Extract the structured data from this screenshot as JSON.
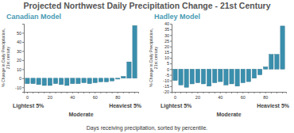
{
  "title": "Projected Northwest Daily Precipitation Change - 21st Century",
  "x_label": "Days receiving precipitation, sorted by percentile.",
  "chart_data": [
    {
      "type": "bar",
      "title": "Canadian Model",
      "y_label": "% Change in Daily Precipitation, 21st century",
      "categories": [
        "0",
        null,
        null,
        null,
        "20",
        null,
        null,
        null,
        "40",
        null,
        null,
        null,
        "60",
        null,
        null,
        null,
        "80",
        null,
        null,
        null
      ],
      "values": [
        -6,
        -6,
        -7,
        -8,
        -8,
        -6,
        -7,
        -8,
        -6,
        -6,
        -5,
        -6,
        -5,
        -4,
        -4,
        -3,
        -1,
        2,
        18,
        58
      ],
      "color": "#3a8fad",
      "ylim": [
        -15,
        60
      ],
      "yticks": [
        -10,
        0,
        10,
        20,
        30,
        40,
        50
      ],
      "grid": false,
      "annotations": [
        "Lightest 5%",
        "Moderate",
        "Heaviest 5%"
      ]
    },
    {
      "type": "bar",
      "title": "Hadley Model",
      "y_label": "% Change in Daily Precipitation, 21st century",
      "categories": [
        "0",
        null,
        null,
        null,
        "20",
        null,
        null,
        null,
        "40",
        null,
        null,
        null,
        "60",
        null,
        null,
        null,
        "80",
        null,
        null,
        null
      ],
      "values": [
        -10,
        -14,
        -16,
        -13,
        -12,
        -13,
        -15,
        -12,
        -11,
        -14,
        -13,
        -15,
        -12,
        -11,
        -8,
        -5,
        2,
        13,
        13,
        38
      ],
      "color": "#3a8fad",
      "ylim": [
        -20,
        40
      ],
      "yticks": [
        -20,
        -15,
        -10,
        -5,
        0,
        5,
        10,
        15,
        20,
        25,
        30,
        35,
        40
      ],
      "grid": false,
      "annotations": [
        "Lightest 5%",
        "Moderate",
        "Heaviest 5%"
      ]
    }
  ]
}
